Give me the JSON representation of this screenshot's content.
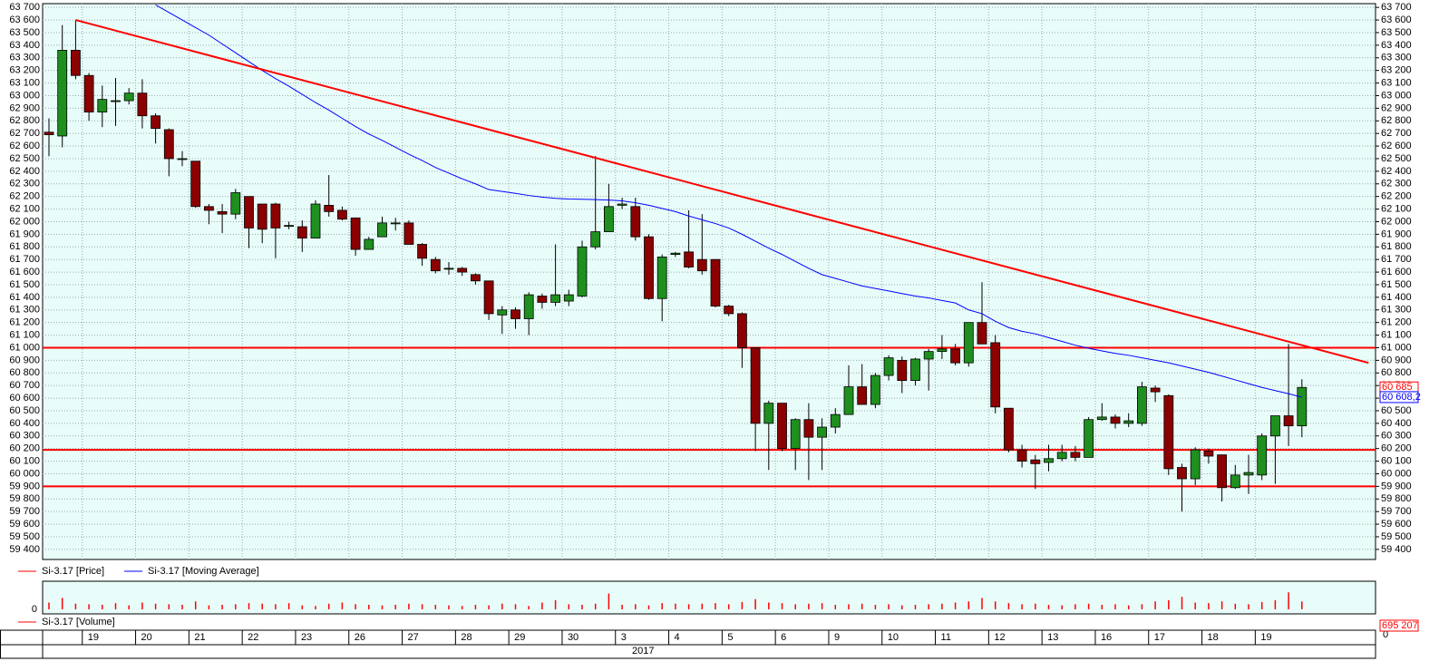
{
  "chart_data": {
    "type": "candlestick",
    "categories": [
      null,
      null,
      null,
      "19",
      null,
      null,
      null,
      "20",
      null,
      null,
      null,
      "21",
      null,
      null,
      null,
      "22",
      null,
      null,
      null,
      "23",
      null,
      null,
      null,
      "26",
      null,
      null,
      null,
      "27",
      null,
      null,
      null,
      "28",
      null,
      null,
      null,
      "29",
      null,
      null,
      null,
      "30",
      null,
      null,
      null,
      "3",
      null,
      null,
      null,
      "4",
      null,
      null,
      null,
      "5",
      null,
      null,
      null,
      "6",
      null,
      null,
      null,
      "9",
      null,
      null,
      null,
      "10",
      null,
      null,
      null,
      "11",
      null,
      null,
      null,
      "12",
      null,
      null,
      null,
      "13",
      null,
      null,
      null,
      "16",
      null,
      null,
      null,
      "17",
      null,
      null,
      null,
      "18",
      null,
      null,
      null,
      "19",
      null,
      null,
      null
    ],
    "year": "2017",
    "ylim": [
      59320,
      63730
    ],
    "yticks": [
      {
        "value": 63700,
        "label": "63 700"
      },
      {
        "value": 63600,
        "label": "63 600"
      },
      {
        "value": 63500,
        "label": "63 500"
      },
      {
        "value": 63400,
        "label": "63 400"
      },
      {
        "value": 63300,
        "label": "63 300"
      },
      {
        "value": 63200,
        "label": "63 200"
      },
      {
        "value": 63100,
        "label": "63 100"
      },
      {
        "value": 63000,
        "label": "63 000"
      },
      {
        "value": 62900,
        "label": "62 900"
      },
      {
        "value": 62800,
        "label": "62 800"
      },
      {
        "value": 62700,
        "label": "62 700"
      },
      {
        "value": 62600,
        "label": "62 600"
      },
      {
        "value": 62500,
        "label": "62 500"
      },
      {
        "value": 62400,
        "label": "62 400"
      },
      {
        "value": 62300,
        "label": "62 300"
      },
      {
        "value": 62200,
        "label": "62 200"
      },
      {
        "value": 62100,
        "label": "62 100"
      },
      {
        "value": 62000,
        "label": "62 000"
      },
      {
        "value": 61900,
        "label": "61 900"
      },
      {
        "value": 61800,
        "label": "61 800"
      },
      {
        "value": 61700,
        "label": "61 700"
      },
      {
        "value": 61600,
        "label": "61 600"
      },
      {
        "value": 61500,
        "label": "61 500"
      },
      {
        "value": 61400,
        "label": "61 400"
      },
      {
        "value": 61300,
        "label": "61 300"
      },
      {
        "value": 61200,
        "label": "61 200"
      },
      {
        "value": 61100,
        "label": "61 100"
      },
      {
        "value": 61000,
        "label": "61 000"
      },
      {
        "value": 60900,
        "label": "60 900"
      },
      {
        "value": 60800,
        "label": "60 800"
      },
      {
        "value": 60700,
        "label": "60 700"
      },
      {
        "value": 60600,
        "label": "60 600"
      },
      {
        "value": 60500,
        "label": "60 500"
      },
      {
        "value": 60400,
        "label": "60 400"
      },
      {
        "value": 60300,
        "label": "60 300"
      },
      {
        "value": 60200,
        "label": "60 200"
      },
      {
        "value": 60100,
        "label": "60 100"
      },
      {
        "value": 60000,
        "label": "60 000"
      },
      {
        "value": 59900,
        "label": "59 900"
      },
      {
        "value": 59800,
        "label": "59 800"
      },
      {
        "value": 59700,
        "label": "59 700"
      },
      {
        "value": 59600,
        "label": "59 600"
      },
      {
        "value": 59500,
        "label": "59 500"
      },
      {
        "value": 59400,
        "label": "59 400"
      }
    ],
    "grid": true,
    "series": [
      {
        "name": "Si-3.17 [Price]",
        "color": "#ff0000",
        "up_color": "#1f8f1f",
        "down_color": "#8b0000",
        "open": [
          62710,
          62680,
          63360,
          63160,
          62870,
          62960,
          62960,
          63020,
          62840,
          62730,
          62500,
          62480,
          62120,
          62080,
          62060,
          62200,
          62140,
          62140,
          61970,
          61960,
          61870,
          62130,
          62090,
          62030,
          61780,
          61880,
          61990,
          61990,
          61820,
          61700,
          61630,
          61630,
          61580,
          61530,
          61260,
          61300,
          61230,
          61410,
          61360,
          61370,
          61410,
          61800,
          61920,
          62130,
          62120,
          61880,
          61390,
          61740,
          61760,
          61700,
          61700,
          61330,
          61270,
          61000,
          60400,
          60560,
          60200,
          60430,
          60290,
          60370,
          60470,
          60690,
          60550,
          60780,
          60900,
          60740,
          60910,
          60970,
          60990,
          60880,
          61200,
          61040,
          60520,
          60190,
          60110,
          60090,
          60120,
          60170,
          60130,
          60430,
          60450,
          60400,
          60400,
          60680,
          60620,
          60050,
          59960,
          60180,
          60150,
          59890,
          59990,
          59990,
          60300,
          60460,
          60380
        ],
        "high": [
          62820,
          63560,
          63600,
          63180,
          63080,
          63140,
          63060,
          63130,
          62860,
          62740,
          62560,
          62480,
          62140,
          62140,
          62260,
          62200,
          62140,
          62150,
          62000,
          62010,
          62170,
          62370,
          62120,
          62030,
          61880,
          62040,
          62030,
          62010,
          61830,
          61720,
          61680,
          61640,
          61590,
          61530,
          61330,
          61320,
          61440,
          61430,
          61820,
          61460,
          61850,
          62520,
          62300,
          62190,
          62190,
          61900,
          61740,
          61760,
          62090,
          62060,
          61700,
          61340,
          61280,
          61000,
          60580,
          60560,
          60440,
          60560,
          60440,
          60520,
          60860,
          60870,
          60800,
          60940,
          60930,
          60920,
          60990,
          61100,
          61030,
          61200,
          61520,
          61100,
          60520,
          60230,
          60150,
          60230,
          60230,
          60220,
          60450,
          60560,
          60470,
          60480,
          60730,
          60700,
          60630,
          60080,
          60210,
          60200,
          60150,
          60070,
          60150,
          60320,
          60460,
          61030,
          60750
        ],
        "low": [
          62520,
          62590,
          63130,
          62800,
          62750,
          62760,
          62930,
          62740,
          62620,
          62360,
          62440,
          62110,
          61980,
          61910,
          62020,
          61790,
          61830,
          61710,
          61940,
          61760,
          61870,
          62040,
          62010,
          61730,
          61780,
          61880,
          61930,
          61820,
          61650,
          61590,
          61580,
          61570,
          61500,
          61220,
          61110,
          61150,
          61100,
          61310,
          61330,
          61330,
          61400,
          61780,
          61920,
          62100,
          61850,
          61380,
          61210,
          61720,
          61630,
          61580,
          61320,
          61250,
          60840,
          60180,
          60030,
          60180,
          60030,
          59950,
          60030,
          60320,
          60470,
          60550,
          60520,
          60740,
          60640,
          60700,
          60660,
          60910,
          60860,
          60850,
          61030,
          60480,
          60170,
          60050,
          59880,
          60020,
          60100,
          60100,
          60130,
          60420,
          60360,
          60370,
          60380,
          60570,
          59990,
          59700,
          59910,
          60080,
          59780,
          59880,
          59840,
          59950,
          59920,
          60220,
          60290
        ],
        "close": [
          62690,
          63360,
          63160,
          62870,
          62970,
          62960,
          63020,
          62840,
          62740,
          62500,
          62500,
          62120,
          62090,
          62060,
          62230,
          61950,
          61940,
          61950,
          61970,
          61870,
          62140,
          62080,
          62020,
          61780,
          61860,
          61990,
          61990,
          61820,
          61710,
          61610,
          61630,
          61600,
          61530,
          61270,
          61300,
          61230,
          61420,
          61360,
          61420,
          61420,
          61800,
          61920,
          62120,
          62140,
          61880,
          61390,
          61720,
          61750,
          61640,
          61610,
          61330,
          61270,
          61000,
          60400,
          60560,
          60200,
          60430,
          60290,
          60370,
          60470,
          60690,
          60550,
          60780,
          60920,
          60740,
          60910,
          60970,
          60990,
          60880,
          61200,
          61030,
          60530,
          60190,
          60100,
          60080,
          60120,
          60170,
          60130,
          60430,
          60450,
          60400,
          60420,
          60690,
          60650,
          60040,
          59960,
          60190,
          60140,
          59890,
          59990,
          60010,
          60300,
          60460,
          60380,
          60685
        ],
        "last_label": {
          "value": 60685,
          "label": "60 685"
        }
      },
      {
        "name": "Si-3.17 [Moving Average]",
        "type": "line",
        "color": "#0000ff",
        "values": [
          null,
          null,
          null,
          null,
          null,
          null,
          null,
          null,
          63720,
          63660,
          63600,
          63540,
          63480,
          63410,
          63340,
          63270,
          63200,
          63135,
          63075,
          63010,
          62945,
          62885,
          62820,
          62755,
          62695,
          62645,
          62590,
          62535,
          62485,
          62430,
          62385,
          62340,
          62300,
          62255,
          62240,
          62225,
          62208,
          62195,
          62185,
          62180,
          62178,
          62175,
          62172,
          62165,
          62150,
          62130,
          62105,
          62080,
          62045,
          62015,
          61985,
          61950,
          61900,
          61845,
          61790,
          61740,
          61685,
          61630,
          61580,
          61550,
          61520,
          61490,
          61470,
          61450,
          61430,
          61410,
          61395,
          61375,
          61355,
          61300,
          61270,
          61210,
          61160,
          61130,
          61110,
          61080,
          61050,
          61020,
          60995,
          60975,
          60955,
          60940,
          60920,
          60900,
          60880,
          60855,
          60830,
          60805,
          60775,
          60745,
          60715,
          60685,
          60660,
          60635,
          60608
        ],
        "last_label": {
          "value": 60608.2,
          "label": "60 608,2"
        }
      }
    ],
    "trendline": {
      "color": "#ff0000",
      "x": [
        2,
        99
      ],
      "values": [
        63600,
        60880
      ]
    },
    "levels": {
      "color": "#ff0000",
      "values": [
        61000,
        60190,
        59900
      ]
    },
    "volume": {
      "name": "Si-3.17 [Volume]",
      "type": "bar",
      "color": "#ff0000",
      "values": [
        600000,
        1000000,
        500000,
        450000,
        400000,
        550000,
        350000,
        600000,
        500000,
        450000,
        400000,
        700000,
        350000,
        400000,
        450000,
        550000,
        500000,
        450000,
        550000,
        350000,
        300000,
        500000,
        600000,
        450000,
        400000,
        350000,
        400000,
        500000,
        450000,
        400000,
        350000,
        300000,
        400000,
        350000,
        500000,
        450000,
        300000,
        600000,
        800000,
        450000,
        400000,
        500000,
        1400000,
        400000,
        450000,
        350000,
        550000,
        500000,
        450000,
        500000,
        550000,
        450000,
        650000,
        900000,
        600000,
        550000,
        450000,
        500000,
        550000,
        400000,
        450000,
        500000,
        400000,
        450000,
        350000,
        400000,
        450000,
        500000,
        600000,
        700000,
        1000000,
        700000,
        550000,
        450000,
        500000,
        400000,
        350000,
        450000,
        500000,
        400000,
        450000,
        350000,
        450000,
        700000,
        800000,
        1100000,
        600000,
        550000,
        700000,
        500000,
        450000,
        650000,
        800000,
        1500000,
        695207
      ],
      "ylim": [
        0,
        2000000
      ],
      "yticks": [
        0
      ],
      "last_label": {
        "value": 695207,
        "label": "695 207"
      }
    }
  }
}
